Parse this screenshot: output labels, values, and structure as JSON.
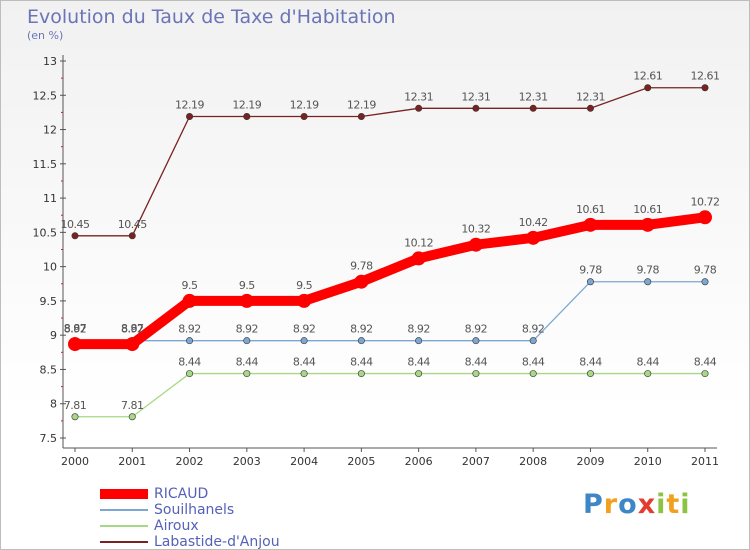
{
  "chart_data": {
    "type": "line",
    "title": "Evolution du Taux de Taxe d'Habitation",
    "subtitle": "(en %)",
    "x": [
      "2000",
      "2001",
      "2002",
      "2003",
      "2004",
      "2005",
      "2006",
      "2007",
      "2008",
      "2009",
      "2010",
      "2011"
    ],
    "ylim": [
      7.5,
      13
    ],
    "yticks": [
      7.5,
      8,
      8.5,
      9,
      9.5,
      10,
      10.5,
      11,
      11.5,
      12,
      12.5,
      13
    ],
    "ytick_labels": [
      "7.5",
      "8",
      "8.5",
      "9",
      "9.5",
      "10",
      "10.5",
      "11",
      "11.5",
      "12",
      "12.5",
      "13"
    ],
    "grid": false,
    "legend_position": "bottom-left",
    "series": [
      {
        "name": "RICAUD",
        "color": "#ff0000",
        "values": [
          8.87,
          8.87,
          9.5,
          9.5,
          9.5,
          9.78,
          10.12,
          10.32,
          10.42,
          10.61,
          10.61,
          10.72
        ],
        "labels": [
          "8.87",
          "8.87",
          "9.5",
          "9.5",
          "9.5",
          "9.78",
          "10.12",
          "10.32",
          "10.42",
          "10.61",
          "10.61",
          "10.72"
        ]
      },
      {
        "name": "Souilhanels",
        "color": "#7da7d2",
        "values": [
          8.92,
          8.92,
          8.92,
          8.92,
          8.92,
          8.92,
          8.92,
          8.92,
          8.92,
          9.78,
          9.78,
          9.78
        ],
        "labels": [
          "8.92",
          "8.92",
          "8.92",
          "8.92",
          "8.92",
          "8.92",
          "8.92",
          "8.92",
          "8.92",
          "9.78",
          "9.78",
          "9.78"
        ]
      },
      {
        "name": "Airoux",
        "color": "#a6d885",
        "values": [
          7.81,
          7.81,
          8.44,
          8.44,
          8.44,
          8.44,
          8.44,
          8.44,
          8.44,
          8.44,
          8.44,
          8.44
        ],
        "labels": [
          "7.81",
          "7.81",
          "8.44",
          "8.44",
          "8.44",
          "8.44",
          "8.44",
          "8.44",
          "8.44",
          "8.44",
          "8.44",
          "8.44"
        ]
      },
      {
        "name": "Labastide-d'Anjou",
        "color": "#7a2222",
        "values": [
          10.45,
          10.45,
          12.19,
          12.19,
          12.19,
          12.19,
          12.31,
          12.31,
          12.31,
          12.31,
          12.61,
          12.61
        ],
        "labels": [
          "10.45",
          "10.45",
          "12.19",
          "12.19",
          "12.19",
          "12.19",
          "12.31",
          "12.31",
          "12.31",
          "12.31",
          "12.61",
          "12.61"
        ]
      }
    ]
  },
  "logo": {
    "letters": [
      {
        "ch": "P",
        "color": "#3f86c6"
      },
      {
        "ch": "r",
        "color": "#f2a11e"
      },
      {
        "ch": "o",
        "color": "#3f86c6"
      },
      {
        "ch": "x",
        "color": "#e33b2e"
      },
      {
        "ch": "i",
        "color": "#8cc342"
      },
      {
        "ch": "t",
        "color": "#f2a11e"
      },
      {
        "ch": "i",
        "color": "#8cc342"
      }
    ]
  }
}
